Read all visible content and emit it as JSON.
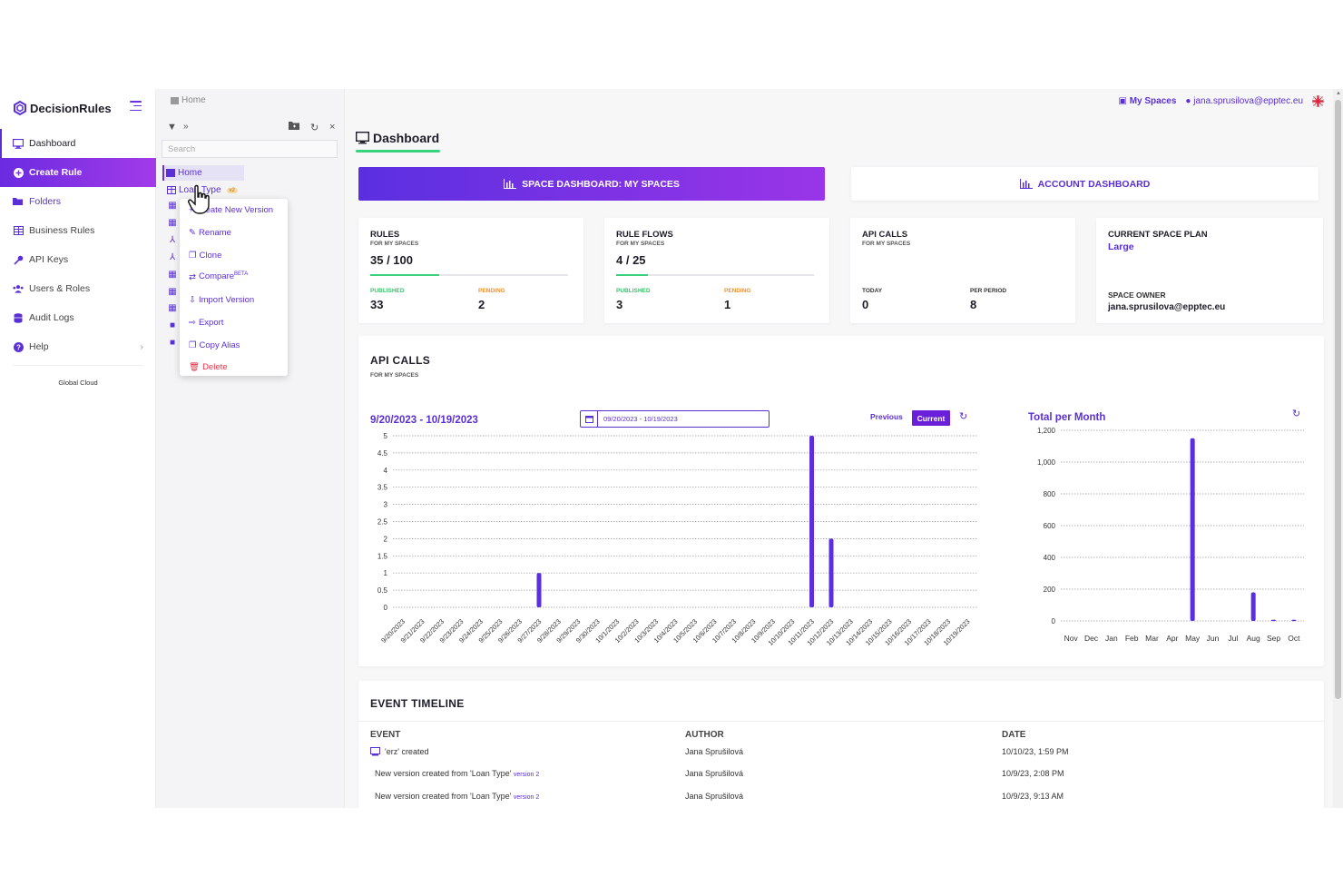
{
  "brand": {
    "name": "DecisionRules"
  },
  "sidebar": {
    "items": [
      {
        "label": "Dashboard",
        "icon": "monitor-icon"
      },
      {
        "label": "Create Rule",
        "icon": "plus-circle-icon"
      },
      {
        "label": "Folders",
        "icon": "folder-open-icon"
      },
      {
        "label": "Business Rules",
        "icon": "table-icon"
      },
      {
        "label": "API Keys",
        "icon": "key-icon"
      },
      {
        "label": "Users & Roles",
        "icon": "users-icon"
      },
      {
        "label": "Audit Logs",
        "icon": "database-icon"
      },
      {
        "label": "Help",
        "icon": "question-circle-icon"
      }
    ],
    "footer": "Global Cloud"
  },
  "tree": {
    "breadcrumb": "Home",
    "search_placeholder": "Search",
    "home_label": "Home",
    "loan_label": "Loan Type",
    "loan_badge": "v2"
  },
  "context_menu": {
    "items": [
      {
        "label": "Create New Version",
        "icon": "plus-icon"
      },
      {
        "label": "Rename",
        "icon": "edit-icon"
      },
      {
        "label": "Clone",
        "icon": "copy-icon"
      },
      {
        "label": "Compare",
        "sup": "BETA",
        "icon": "compare-icon"
      },
      {
        "label": "Import Version",
        "icon": "import-icon"
      },
      {
        "label": "Export",
        "icon": "export-icon"
      },
      {
        "label": "Copy Alias",
        "icon": "copy-icon"
      },
      {
        "label": "Delete",
        "icon": "trash-icon"
      }
    ]
  },
  "header": {
    "my_spaces": "My Spaces",
    "user_email": "jana.sprusilova@epptec.eu",
    "page_title": "Dashboard"
  },
  "tabs": {
    "space": "SPACE DASHBOARD: MY SPACES",
    "account": "ACCOUNT DASHBOARD"
  },
  "stats": {
    "rules": {
      "title": "RULES",
      "sub": "FOR MY SPACES",
      "value": "35 / 100",
      "progress": 0.35,
      "published_label": "PUBLISHED",
      "published": "33",
      "pending_label": "PENDING",
      "pending": "2"
    },
    "flows": {
      "title": "RULE FLOWS",
      "sub": "FOR MY SPACES",
      "value": "4 / 25",
      "progress": 0.16,
      "published_label": "PUBLISHED",
      "published": "3",
      "pending_label": "PENDING",
      "pending": "1"
    },
    "api": {
      "title": "API CALLS",
      "sub": "FOR MY SPACES",
      "today_label": "TODAY",
      "today": "0",
      "period_label": "PER PERIOD",
      "period": "8"
    },
    "plan": {
      "title": "CURRENT SPACE PLAN",
      "plan": "Large",
      "owner_label": "SPACE OWNER",
      "owner": "jana.sprusilova@epptec.eu"
    }
  },
  "api_calls": {
    "title": "API CALLS",
    "sub": "FOR MY SPACES",
    "range_title": "9/20/2023 - 10/19/2023",
    "date_input": "09/20/2023 - 10/19/2023",
    "previous": "Previous",
    "current": "Current",
    "tpm_title": "Total per Month"
  },
  "chart_data": [
    {
      "type": "bar",
      "title": "9/20/2023 - 10/19/2023",
      "categories": [
        "9/20/2023",
        "9/21/2023",
        "9/22/2023",
        "9/23/2023",
        "9/24/2023",
        "9/25/2023",
        "9/26/2023",
        "9/27/2023",
        "9/28/2023",
        "9/29/2023",
        "9/30/2023",
        "10/1/2023",
        "10/2/2023",
        "10/3/2023",
        "10/4/2023",
        "10/5/2023",
        "10/6/2023",
        "10/7/2023",
        "10/8/2023",
        "10/9/2023",
        "10/10/2023",
        "10/11/2023",
        "10/12/2023",
        "10/13/2023",
        "10/14/2023",
        "10/15/2023",
        "10/16/2023",
        "10/17/2023",
        "10/18/2023",
        "10/19/2023"
      ],
      "values": [
        0,
        0,
        0,
        0,
        0,
        0,
        0,
        1,
        0,
        0,
        0,
        0,
        0,
        0,
        0,
        0,
        0,
        0,
        0,
        0,
        0,
        5,
        2,
        0,
        0,
        0,
        0,
        0,
        0,
        0
      ],
      "yticks": [
        "0",
        "0.5",
        "1",
        "1.5",
        "2",
        "2.5",
        "3",
        "3.5",
        "4",
        "4.5",
        "5"
      ],
      "ylim": [
        0,
        5
      ],
      "grid": true,
      "color": "#5b2ee0"
    },
    {
      "type": "bar",
      "title": "Total per Month",
      "categories": [
        "Nov",
        "Dec",
        "Jan",
        "Feb",
        "Mar",
        "Apr",
        "May",
        "Jun",
        "Jul",
        "Aug",
        "Sep",
        "Oct"
      ],
      "values": [
        0,
        0,
        0,
        0,
        0,
        0,
        1150,
        0,
        0,
        180,
        8,
        8
      ],
      "yticks": [
        "0",
        "200",
        "400",
        "600",
        "800",
        "1,000",
        "1,200"
      ],
      "ylim": [
        0,
        1200
      ],
      "grid": true,
      "color": "#5b2ee0"
    }
  ],
  "events": {
    "title": "EVENT TIMELINE",
    "headers": [
      "EVENT",
      "AUTHOR",
      "DATE"
    ],
    "rows": [
      {
        "event": "'erz' created",
        "version": "",
        "author": "Jana Sprušilová",
        "date": "10/10/23, 1:59 PM"
      },
      {
        "event": "New version created from 'Loan Type'",
        "version": "version 2",
        "author": "Jana Sprušilová",
        "date": "10/9/23, 2:08 PM"
      },
      {
        "event": "New version created from 'Loan Type'",
        "version": "version 2",
        "author": "Jana Sprušilová",
        "date": "10/9/23, 9:13 AM"
      }
    ]
  },
  "colors": {
    "accent": "#5a2fd6",
    "gradient_start": "#5a2fe0",
    "gradient_end": "#9a35e8",
    "success": "#39d17b",
    "pending": "#f0922b",
    "danger": "#e0364a"
  }
}
